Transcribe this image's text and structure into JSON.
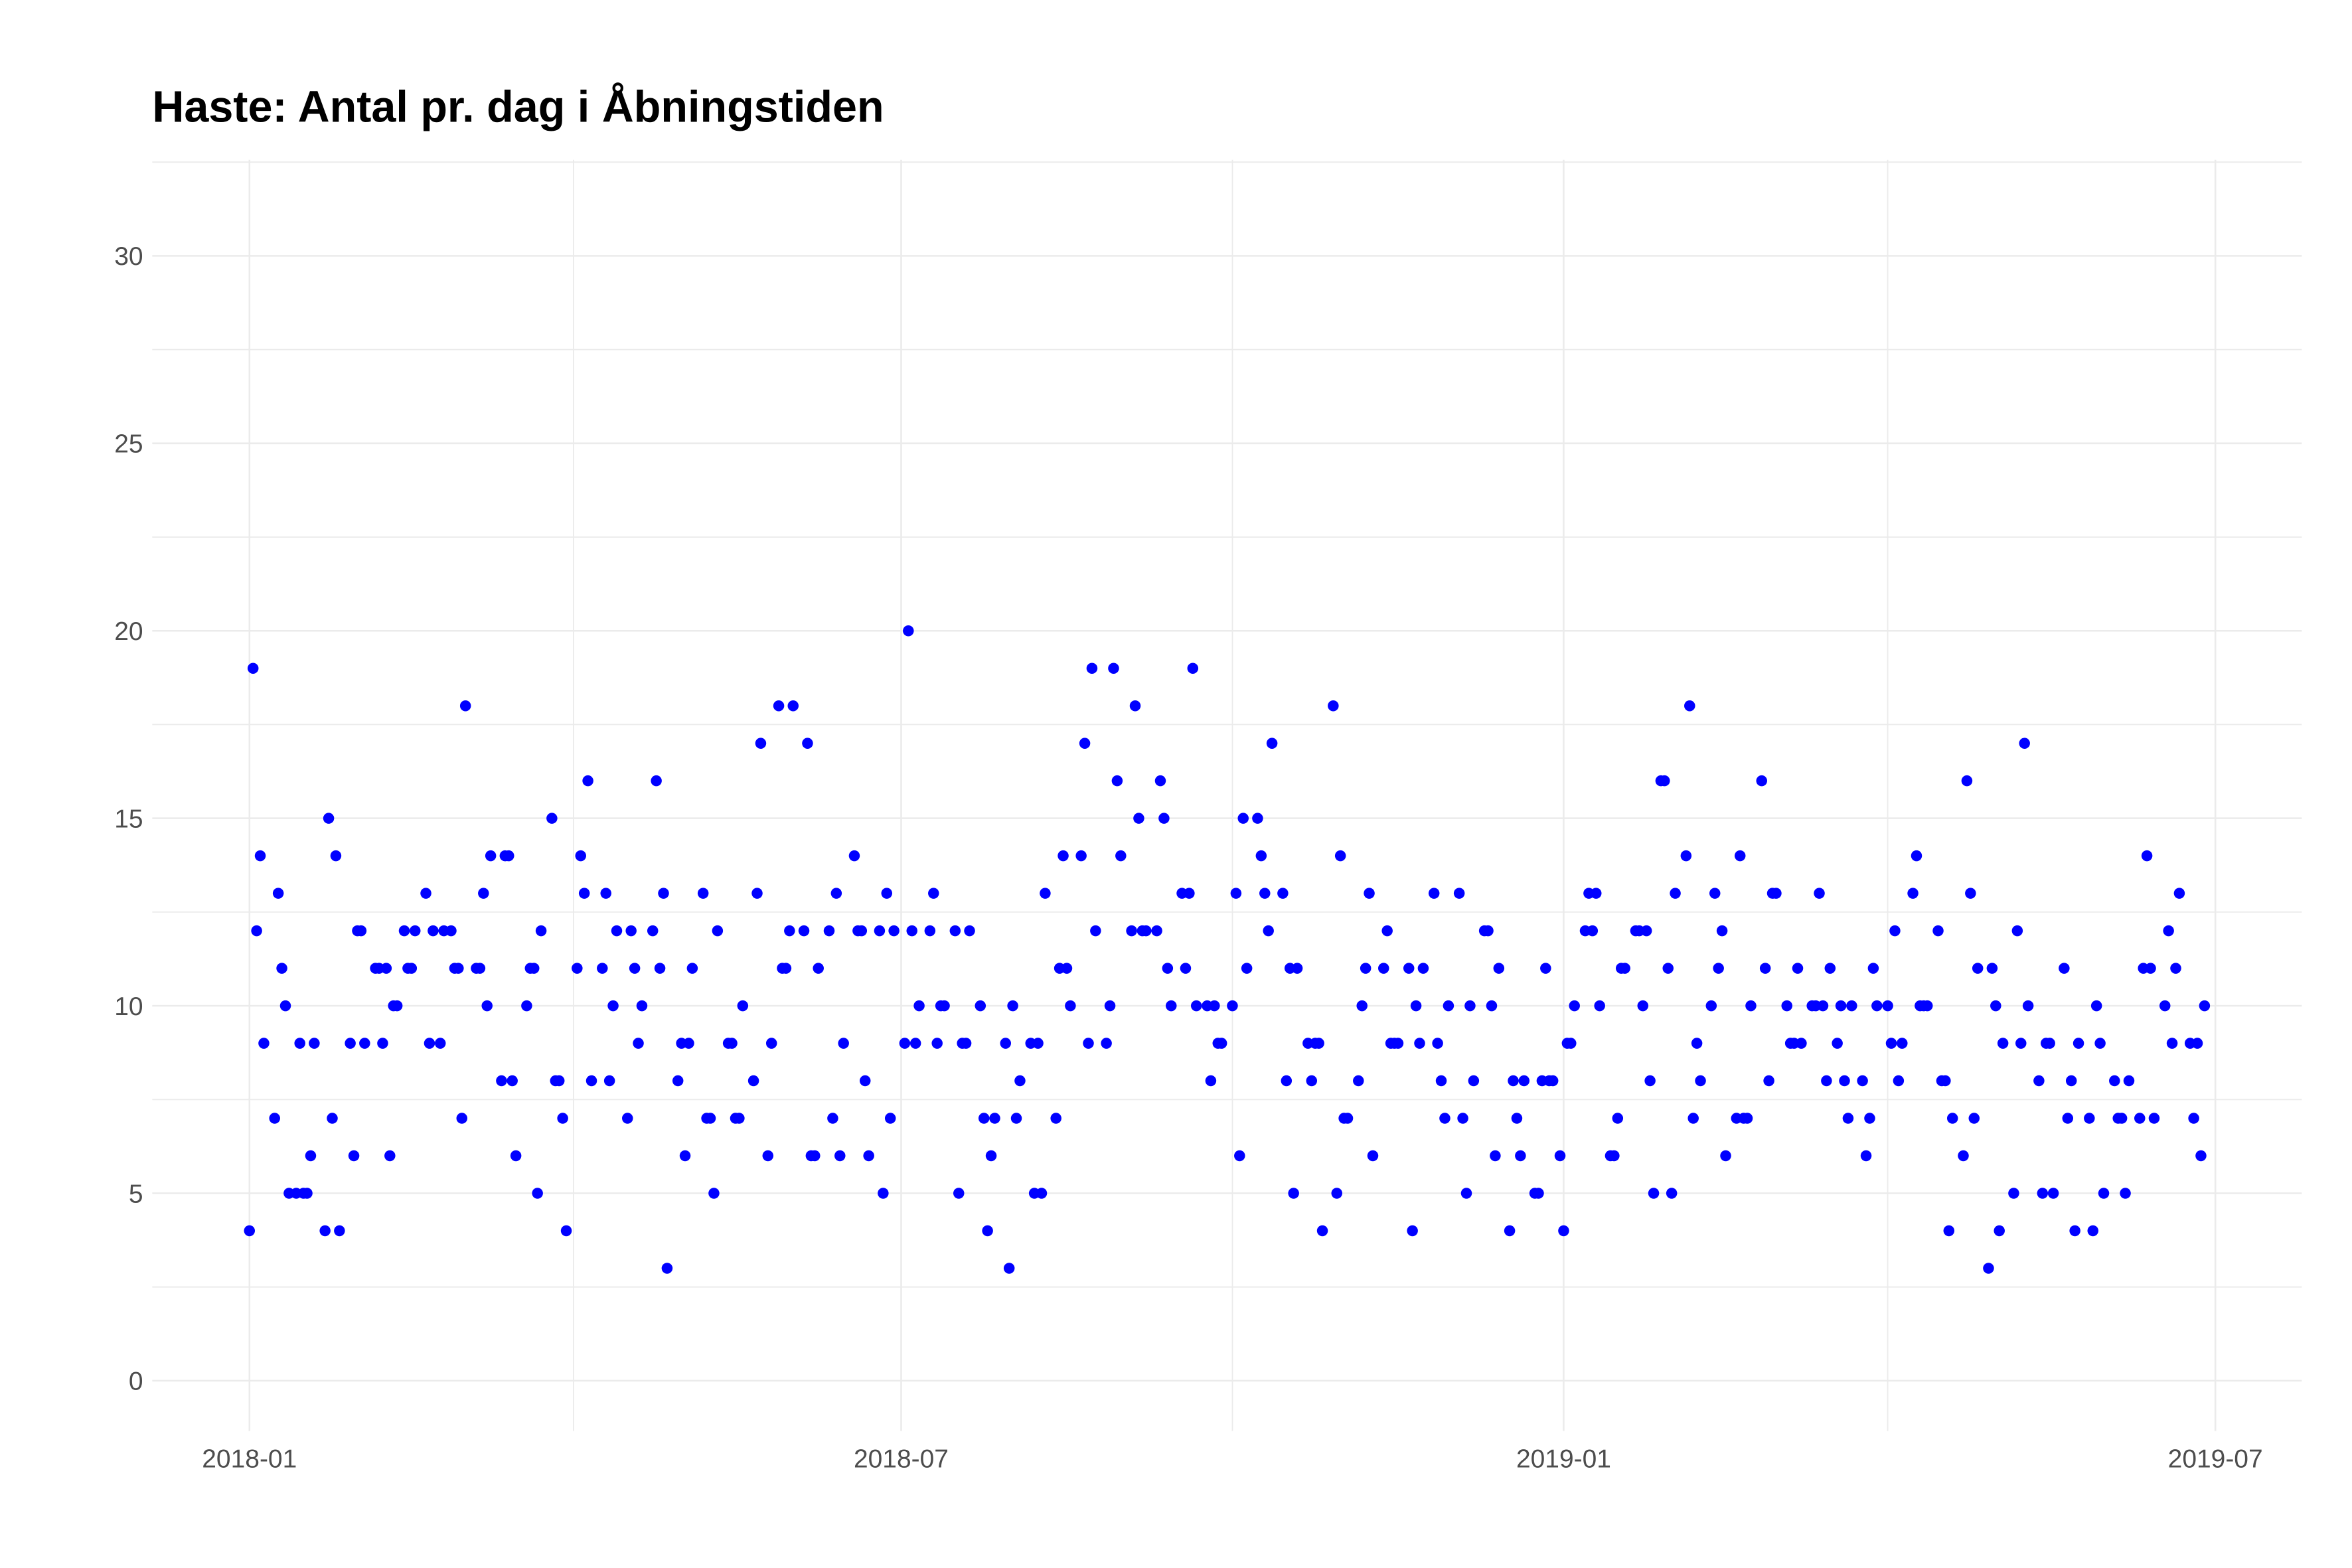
{
  "chart_data": {
    "type": "scatter",
    "title": "Haste: Antal pr. dag i Åbningstiden",
    "color": "#0000ff",
    "grid": true,
    "xlim": [
      "2017-12-05",
      "2019-07-25"
    ],
    "xticks": [
      {
        "value": "2018-01-01",
        "label": "2018-01"
      },
      {
        "value": "2018-07-01",
        "label": "2018-07"
      },
      {
        "value": "2019-01-01",
        "label": "2019-01"
      },
      {
        "value": "2019-07-01",
        "label": "2019-07"
      }
    ],
    "xminor": [
      "2018-04-01",
      "2018-10-01",
      "2019-04-01"
    ],
    "ylim": [
      -1.34,
      32.56
    ],
    "yticks": [
      0,
      5,
      10,
      15,
      20,
      25,
      30
    ],
    "yminor": [
      2.5,
      7.5,
      12.5,
      17.5,
      22.5,
      27.5,
      32.5
    ],
    "x": [
      "2018-01-01",
      "2018-01-02",
      "2018-01-03",
      "2018-01-04",
      "2018-01-05",
      "2018-01-08",
      "2018-01-09",
      "2018-01-10",
      "2018-01-11",
      "2018-01-12",
      "2018-01-14",
      "2018-01-15",
      "2018-01-16",
      "2018-01-17",
      "2018-01-18",
      "2018-01-19",
      "2018-01-22",
      "2018-01-23",
      "2018-01-24",
      "2018-01-25",
      "2018-01-26",
      "2018-01-29",
      "2018-01-30",
      "2018-01-31",
      "2018-02-01",
      "2018-02-02",
      "2018-02-05",
      "2018-02-06",
      "2018-02-07",
      "2018-02-08",
      "2018-02-09",
      "2018-02-10",
      "2018-02-11",
      "2018-02-13",
      "2018-02-14",
      "2018-02-15",
      "2018-02-16",
      "2018-02-19",
      "2018-02-20",
      "2018-02-21",
      "2018-02-23",
      "2018-02-24",
      "2018-02-26",
      "2018-02-27",
      "2018-02-28",
      "2018-03-01",
      "2018-03-02",
      "2018-03-05",
      "2018-03-06",
      "2018-03-07",
      "2018-03-08",
      "2018-03-09",
      "2018-03-12",
      "2018-03-13",
      "2018-03-14",
      "2018-03-15",
      "2018-03-16",
      "2018-03-19",
      "2018-03-20",
      "2018-03-21",
      "2018-03-22",
      "2018-03-23",
      "2018-03-26",
      "2018-03-27",
      "2018-03-28",
      "2018-03-29",
      "2018-03-30",
      "2018-04-02",
      "2018-04-03",
      "2018-04-04",
      "2018-04-05",
      "2018-04-06",
      "2018-04-09",
      "2018-04-10",
      "2018-04-11",
      "2018-04-12",
      "2018-04-13",
      "2018-04-16",
      "2018-04-17",
      "2018-04-18",
      "2018-04-19",
      "2018-04-20",
      "2018-04-23",
      "2018-04-24",
      "2018-04-25",
      "2018-04-26",
      "2018-04-27",
      "2018-04-30",
      "2018-05-01",
      "2018-05-02",
      "2018-05-03",
      "2018-05-04",
      "2018-05-07",
      "2018-05-08",
      "2018-05-09",
      "2018-05-10",
      "2018-05-11",
      "2018-05-14",
      "2018-05-15",
      "2018-05-16",
      "2018-05-17",
      "2018-05-18",
      "2018-05-21",
      "2018-05-22",
      "2018-05-23",
      "2018-05-25",
      "2018-05-26",
      "2018-05-28",
      "2018-05-29",
      "2018-05-30",
      "2018-05-31",
      "2018-06-01",
      "2018-06-04",
      "2018-06-05",
      "2018-06-06",
      "2018-06-07",
      "2018-06-08",
      "2018-06-11",
      "2018-06-12",
      "2018-06-13",
      "2018-06-14",
      "2018-06-15",
      "2018-06-18",
      "2018-06-19",
      "2018-06-20",
      "2018-06-21",
      "2018-06-22",
      "2018-06-25",
      "2018-06-26",
      "2018-06-27",
      "2018-06-28",
      "2018-06-29",
      "2018-07-02",
      "2018-07-03",
      "2018-07-04",
      "2018-07-05",
      "2018-07-06",
      "2018-07-09",
      "2018-07-10",
      "2018-07-11",
      "2018-07-12",
      "2018-07-13",
      "2018-07-16",
      "2018-07-17",
      "2018-07-18",
      "2018-07-19",
      "2018-07-20",
      "2018-07-23",
      "2018-07-24",
      "2018-07-25",
      "2018-07-26",
      "2018-07-27",
      "2018-07-30",
      "2018-07-31",
      "2018-08-01",
      "2018-08-02",
      "2018-08-03",
      "2018-08-06",
      "2018-08-07",
      "2018-08-08",
      "2018-08-09",
      "2018-08-10",
      "2018-08-13",
      "2018-08-14",
      "2018-08-15",
      "2018-08-16",
      "2018-08-17",
      "2018-08-20",
      "2018-08-21",
      "2018-08-22",
      "2018-08-23",
      "2018-08-24",
      "2018-08-27",
      "2018-08-28",
      "2018-08-29",
      "2018-08-30",
      "2018-08-31",
      "2018-09-03",
      "2018-09-04",
      "2018-09-05",
      "2018-09-06",
      "2018-09-07",
      "2018-09-10",
      "2018-09-11",
      "2018-09-12",
      "2018-09-13",
      "2018-09-14",
      "2018-09-17",
      "2018-09-18",
      "2018-09-19",
      "2018-09-20",
      "2018-09-21",
      "2018-09-24",
      "2018-09-25",
      "2018-09-26",
      "2018-09-27",
      "2018-09-28",
      "2018-10-01",
      "2018-10-02",
      "2018-10-03",
      "2018-10-04",
      "2018-10-05",
      "2018-10-08",
      "2018-10-09",
      "2018-10-10",
      "2018-10-11",
      "2018-10-12",
      "2018-10-15",
      "2018-10-16",
      "2018-10-17",
      "2018-10-18",
      "2018-10-19",
      "2018-10-22",
      "2018-10-23",
      "2018-10-24",
      "2018-10-25",
      "2018-10-26",
      "2018-10-29",
      "2018-10-30",
      "2018-10-31",
      "2018-11-01",
      "2018-11-02",
      "2018-11-05",
      "2018-11-06",
      "2018-11-07",
      "2018-11-08",
      "2018-11-09",
      "2018-11-12",
      "2018-11-13",
      "2018-11-14",
      "2018-11-15",
      "2018-11-16",
      "2018-11-19",
      "2018-11-20",
      "2018-11-21",
      "2018-11-22",
      "2018-11-23",
      "2018-11-26",
      "2018-11-27",
      "2018-11-28",
      "2018-11-29",
      "2018-11-30",
      "2018-12-03",
      "2018-12-04",
      "2018-12-05",
      "2018-12-06",
      "2018-12-07",
      "2018-12-10",
      "2018-12-11",
      "2018-12-12",
      "2018-12-13",
      "2018-12-14",
      "2018-12-17",
      "2018-12-18",
      "2018-12-19",
      "2018-12-20",
      "2018-12-21",
      "2018-12-24",
      "2018-12-25",
      "2018-12-26",
      "2018-12-27",
      "2018-12-28",
      "2018-12-29",
      "2018-12-31",
      "2019-01-01",
      "2019-01-02",
      "2019-01-03",
      "2019-01-04",
      "2019-01-07",
      "2019-01-08",
      "2019-01-09",
      "2019-01-10",
      "2019-01-11",
      "2019-01-14",
      "2019-01-15",
      "2019-01-16",
      "2019-01-17",
      "2019-01-18",
      "2019-01-21",
      "2019-01-22",
      "2019-01-23",
      "2019-01-24",
      "2019-01-25",
      "2019-01-26",
      "2019-01-28",
      "2019-01-29",
      "2019-01-30",
      "2019-01-31",
      "2019-02-01",
      "2019-02-04",
      "2019-02-05",
      "2019-02-06",
      "2019-02-07",
      "2019-02-08",
      "2019-02-11",
      "2019-02-12",
      "2019-02-13",
      "2019-02-14",
      "2019-02-15",
      "2019-02-18",
      "2019-02-19",
      "2019-02-20",
      "2019-02-21",
      "2019-02-22",
      "2019-02-25",
      "2019-02-26",
      "2019-02-27",
      "2019-02-28",
      "2019-03-01",
      "2019-03-04",
      "2019-03-05",
      "2019-03-06",
      "2019-03-07",
      "2019-03-08",
      "2019-03-11",
      "2019-03-12",
      "2019-03-13",
      "2019-03-14",
      "2019-03-15",
      "2019-03-16",
      "2019-03-18",
      "2019-03-19",
      "2019-03-20",
      "2019-03-21",
      "2019-03-22",
      "2019-03-25",
      "2019-03-26",
      "2019-03-27",
      "2019-03-28",
      "2019-03-29",
      "2019-04-01",
      "2019-04-02",
      "2019-04-03",
      "2019-04-04",
      "2019-04-05",
      "2019-04-08",
      "2019-04-09",
      "2019-04-10",
      "2019-04-11",
      "2019-04-12",
      "2019-04-15",
      "2019-04-16",
      "2019-04-17",
      "2019-04-18",
      "2019-04-19",
      "2019-04-22",
      "2019-04-23",
      "2019-04-24",
      "2019-04-25",
      "2019-04-26",
      "2019-04-29",
      "2019-04-30",
      "2019-05-01",
      "2019-05-02",
      "2019-05-03",
      "2019-05-06",
      "2019-05-07",
      "2019-05-08",
      "2019-05-09",
      "2019-05-10",
      "2019-05-13",
      "2019-05-14",
      "2019-05-15",
      "2019-05-16",
      "2019-05-17",
      "2019-05-20",
      "2019-05-21",
      "2019-05-22",
      "2019-05-23",
      "2019-05-24",
      "2019-05-27",
      "2019-05-28",
      "2019-05-29",
      "2019-05-30",
      "2019-05-31",
      "2019-06-03",
      "2019-06-04",
      "2019-06-05",
      "2019-06-06",
      "2019-06-07",
      "2019-06-10",
      "2019-06-11",
      "2019-06-12",
      "2019-06-13",
      "2019-06-14",
      "2019-06-17",
      "2019-06-18",
      "2019-06-19",
      "2019-06-20",
      "2019-06-21",
      "2019-06-24",
      "2019-06-25",
      "2019-06-26",
      "2019-06-27",
      "2019-06-28"
    ],
    "values": [
      4,
      19,
      12,
      14,
      9,
      7,
      13,
      11,
      10,
      5,
      5,
      9,
      5,
      5,
      6,
      9,
      4,
      15,
      7,
      14,
      4,
      9,
      6,
      12,
      12,
      9,
      11,
      11,
      9,
      11,
      6,
      10,
      10,
      12,
      11,
      11,
      12,
      13,
      9,
      12,
      9,
      12,
      12,
      11,
      11,
      7,
      18,
      11,
      11,
      13,
      10,
      14,
      8,
      14,
      14,
      8,
      6,
      10,
      11,
      11,
      5,
      12,
      15,
      8,
      8,
      7,
      4,
      11,
      14,
      13,
      16,
      8,
      11,
      13,
      8,
      10,
      12,
      7,
      12,
      11,
      9,
      10,
      12,
      16,
      11,
      13,
      3,
      8,
      9,
      6,
      9,
      11,
      13,
      7,
      7,
      5,
      12,
      9,
      9,
      7,
      7,
      10,
      8,
      13,
      17,
      6,
      9,
      18,
      11,
      11,
      12,
      18,
      12,
      17,
      6,
      6,
      11,
      12,
      7,
      13,
      6,
      9,
      14,
      12,
      12,
      8,
      6,
      12,
      5,
      13,
      7,
      12,
      9,
      20,
      12,
      9,
      10,
      12,
      13,
      9,
      10,
      10,
      12,
      5,
      9,
      9,
      12,
      10,
      7,
      4,
      6,
      7,
      9,
      3,
      10,
      7,
      8,
      9,
      5,
      9,
      5,
      13,
      7,
      11,
      14,
      11,
      10,
      14,
      17,
      9,
      19,
      12,
      9,
      10,
      19,
      16,
      14,
      12,
      18,
      15,
      12,
      12,
      12,
      16,
      15,
      11,
      10,
      13,
      11,
      13,
      19,
      10,
      10,
      8,
      10,
      9,
      9,
      10,
      13,
      6,
      15,
      11,
      15,
      14,
      13,
      12,
      17,
      13,
      8,
      11,
      5,
      11,
      9,
      8,
      9,
      9,
      4,
      18,
      5,
      14,
      7,
      7,
      8,
      10,
      11,
      13,
      6,
      11,
      12,
      9,
      9,
      9,
      11,
      4,
      10,
      9,
      11,
      13,
      9,
      8,
      7,
      10,
      13,
      7,
      5,
      10,
      8,
      12,
      12,
      10,
      6,
      11,
      4,
      8,
      7,
      6,
      8,
      5,
      5,
      8,
      11,
      8,
      8,
      6,
      4,
      9,
      9,
      10,
      12,
      13,
      12,
      13,
      10,
      6,
      6,
      7,
      11,
      11,
      12,
      12,
      10,
      12,
      8,
      5,
      16,
      16,
      11,
      5,
      13,
      14,
      18,
      7,
      9,
      8,
      10,
      13,
      11,
      12,
      6,
      7,
      14,
      7,
      7,
      10,
      16,
      11,
      8,
      13,
      13,
      10,
      9,
      9,
      11,
      9,
      10,
      10,
      13,
      10,
      8,
      11,
      9,
      10,
      8,
      7,
      10,
      8,
      6,
      7,
      11,
      10,
      10,
      9,
      12,
      8,
      9,
      13,
      14,
      10,
      10,
      10,
      12,
      8,
      8,
      4,
      7,
      6,
      16,
      13,
      7,
      11,
      3,
      11,
      10,
      4,
      9,
      5,
      12,
      9,
      17,
      10,
      8,
      5,
      9,
      9,
      5,
      11,
      7,
      8,
      4,
      9,
      7,
      4,
      10,
      9,
      5,
      8,
      7,
      7,
      5,
      8,
      7,
      11,
      14,
      11,
      7,
      10,
      12,
      9,
      11,
      13,
      9,
      7,
      9,
      6,
      10
    ]
  }
}
